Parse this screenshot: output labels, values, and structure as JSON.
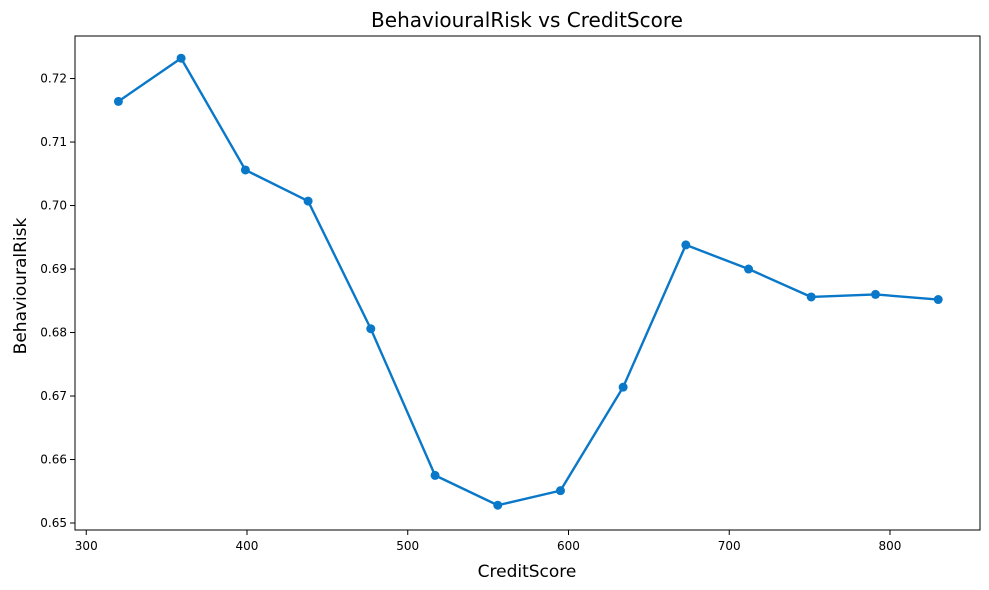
{
  "chart_data": {
    "type": "line",
    "title": "BehaviouralRisk vs CreditScore",
    "xlabel": "CreditScore",
    "ylabel": "BehaviouralRisk",
    "xlim": [
      293,
      856
    ],
    "ylim": [
      0.6489,
      0.7267
    ],
    "xticks": [
      300,
      400,
      500,
      600,
      700,
      800
    ],
    "xtick_labels": [
      "300",
      "400",
      "500",
      "600",
      "700",
      "800"
    ],
    "yticks": [
      0.65,
      0.66,
      0.67,
      0.68,
      0.69,
      0.7,
      0.71,
      0.72
    ],
    "ytick_labels": [
      "0.65",
      "0.66",
      "0.67",
      "0.68",
      "0.69",
      "0.70",
      "0.71",
      "0.72"
    ],
    "grid": false,
    "series": [
      {
        "color": "#0a78c8",
        "x": [
          320,
          359,
          399,
          438,
          477,
          517,
          556,
          595,
          634,
          673,
          712,
          751,
          791,
          830
        ],
        "y": [
          0.7164,
          0.7232,
          0.7056,
          0.7007,
          0.6806,
          0.6575,
          0.6528,
          0.6551,
          0.6714,
          0.6938,
          0.69,
          0.6856,
          0.686,
          0.6852
        ]
      }
    ]
  }
}
